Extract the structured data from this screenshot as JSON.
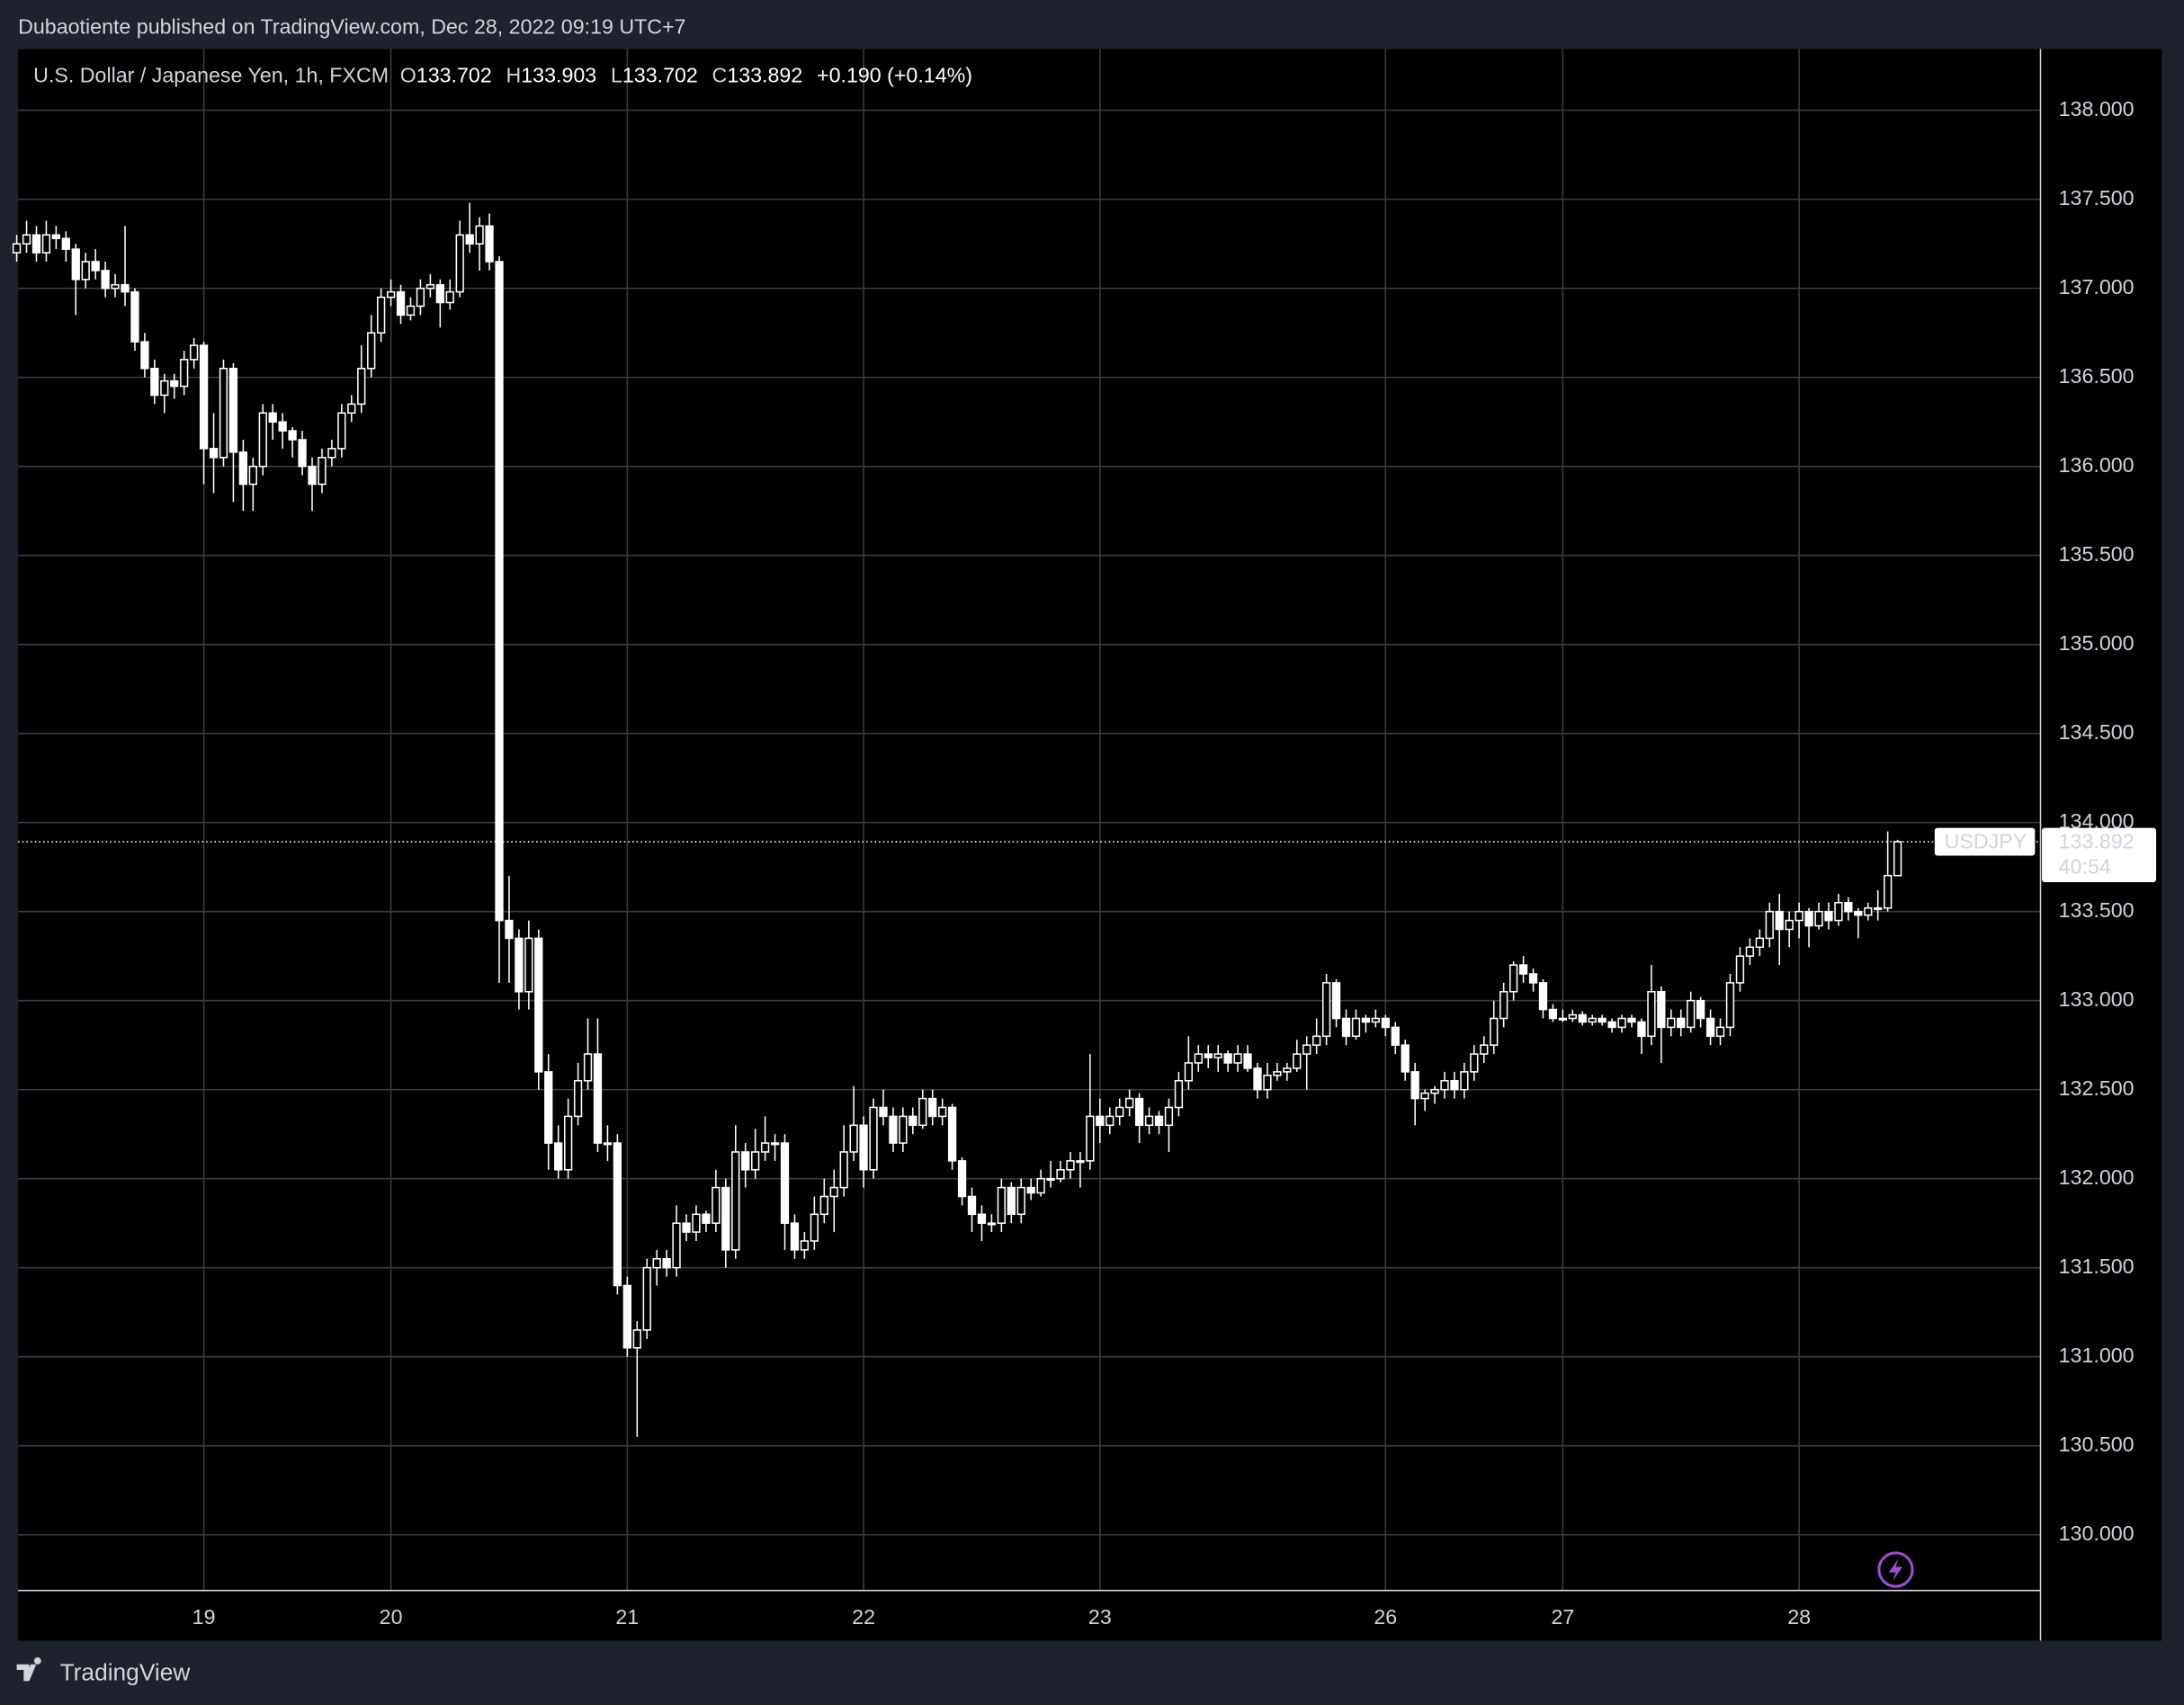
{
  "attribution": "Dubaotiente published on TradingView.com, Dec 28, 2022 09:19 UTC+7",
  "brand": "TradingView",
  "chart_data": {
    "type": "candlestick",
    "symbol": "U.S. Dollar / Japanese Yen, 1h, FXCM",
    "ohlc_labels": [
      "O",
      "H",
      "L",
      "C"
    ],
    "change": "+0.190 (+0.14%)",
    "ticker": "USDJPY",
    "countdown": "40:54",
    "color": "#ffffff",
    "up_fill": "#000000",
    "down_fill": "#ffffff",
    "grid": true,
    "ylim": [
      129.687,
      138.344
    ],
    "yticks": [
      {
        "value": 130,
        "label": "130.000"
      },
      {
        "value": 130.5,
        "label": "130.500"
      },
      {
        "value": 131,
        "label": "131.000"
      },
      {
        "value": 131.5,
        "label": "131.500"
      },
      {
        "value": 132,
        "label": "132.000"
      },
      {
        "value": 132.5,
        "label": "132.500"
      },
      {
        "value": 133,
        "label": "133.000"
      },
      {
        "value": 133.5,
        "label": "133.500"
      },
      {
        "value": 134,
        "label": "134.000"
      },
      {
        "value": 134.5,
        "label": "134.500"
      },
      {
        "value": 135,
        "label": "135.000"
      },
      {
        "value": 135.5,
        "label": "135.500"
      },
      {
        "value": 136,
        "label": "136.000"
      },
      {
        "value": 136.5,
        "label": "136.500"
      },
      {
        "value": 137,
        "label": "137.000"
      },
      {
        "value": 137.5,
        "label": "137.500"
      },
      {
        "value": 138,
        "label": "138.000"
      }
    ],
    "categories": [
      null,
      null,
      null,
      null,
      null,
      null,
      null,
      null,
      null,
      null,
      null,
      null,
      null,
      null,
      null,
      null,
      null,
      null,
      null,
      "19",
      null,
      null,
      null,
      null,
      null,
      null,
      null,
      null,
      null,
      null,
      null,
      null,
      null,
      null,
      null,
      null,
      null,
      null,
      "20",
      null,
      null,
      null,
      null,
      null,
      null,
      null,
      null,
      null,
      null,
      null,
      null,
      null,
      null,
      null,
      null,
      null,
      null,
      null,
      null,
      null,
      null,
      null,
      "21",
      null,
      null,
      null,
      null,
      null,
      null,
      null,
      null,
      null,
      null,
      null,
      null,
      null,
      null,
      null,
      null,
      null,
      null,
      null,
      null,
      null,
      null,
      null,
      "22",
      null,
      null,
      null,
      null,
      null,
      null,
      null,
      null,
      null,
      null,
      null,
      null,
      null,
      null,
      null,
      null,
      null,
      null,
      null,
      null,
      null,
      null,
      null,
      "23",
      null,
      null,
      null,
      null,
      null,
      null,
      null,
      null,
      null,
      null,
      null,
      null,
      null,
      null,
      null,
      null,
      null,
      null,
      null,
      null,
      null,
      null,
      null,
      null,
      null,
      null,
      null,
      null,
      "26",
      null,
      null,
      null,
      null,
      null,
      null,
      null,
      null,
      null,
      null,
      null,
      null,
      null,
      null,
      null,
      null,
      null,
      "27",
      null,
      null,
      null,
      null,
      null,
      null,
      null,
      null,
      null,
      null,
      null,
      null,
      null,
      null,
      null,
      null,
      null,
      null,
      null,
      null,
      null,
      null,
      null,
      "28",
      null,
      null,
      null,
      null,
      null,
      null,
      null,
      null,
      null,
      null
    ],
    "candles": [
      [
        137.2,
        137.3,
        137.15,
        137.25
      ],
      [
        137.25,
        137.38,
        137.2,
        137.3
      ],
      [
        137.3,
        137.35,
        137.15,
        137.2
      ],
      [
        137.2,
        137.38,
        137.15,
        137.3
      ],
      [
        137.3,
        137.35,
        137.22,
        137.28
      ],
      [
        137.28,
        137.32,
        137.15,
        137.22
      ],
      [
        137.22,
        137.25,
        136.85,
        137.05
      ],
      [
        137.05,
        137.2,
        137.0,
        137.15
      ],
      [
        137.15,
        137.22,
        137.05,
        137.1
      ],
      [
        137.1,
        137.15,
        136.95,
        137.0
      ],
      [
        137.0,
        137.08,
        136.95,
        137.02
      ],
      [
        137.02,
        137.35,
        136.9,
        136.98
      ],
      [
        136.98,
        137.0,
        136.65,
        136.7
      ],
      [
        136.7,
        136.75,
        136.5,
        136.55
      ],
      [
        136.55,
        136.6,
        136.35,
        136.4
      ],
      [
        136.4,
        136.52,
        136.3,
        136.48
      ],
      [
        136.48,
        136.52,
        136.38,
        136.45
      ],
      [
        136.45,
        136.65,
        136.4,
        136.6
      ],
      [
        136.6,
        136.72,
        136.55,
        136.68
      ],
      [
        136.68,
        136.7,
        135.9,
        136.1
      ],
      [
        136.1,
        136.3,
        135.85,
        136.05
      ],
      [
        136.05,
        136.6,
        136.0,
        136.55
      ],
      [
        136.55,
        136.58,
        135.8,
        136.08
      ],
      [
        136.08,
        136.15,
        135.75,
        135.9
      ],
      [
        135.9,
        136.05,
        135.75,
        136.0
      ],
      [
        136.0,
        136.35,
        135.95,
        136.3
      ],
      [
        136.3,
        136.35,
        136.15,
        136.25
      ],
      [
        136.25,
        136.3,
        136.1,
        136.2
      ],
      [
        136.2,
        136.22,
        136.05,
        136.15
      ],
      [
        136.15,
        136.2,
        135.95,
        136.0
      ],
      [
        136.0,
        136.05,
        135.75,
        135.9
      ],
      [
        135.9,
        136.1,
        135.85,
        136.05
      ],
      [
        136.05,
        136.15,
        136.0,
        136.1
      ],
      [
        136.1,
        136.35,
        136.05,
        136.3
      ],
      [
        136.3,
        136.4,
        136.25,
        136.35
      ],
      [
        136.35,
        136.68,
        136.3,
        136.55
      ],
      [
        136.55,
        136.85,
        136.5,
        136.75
      ],
      [
        136.75,
        137.0,
        136.7,
        136.95
      ],
      [
        136.95,
        137.05,
        136.9,
        136.98
      ],
      [
        136.98,
        137.02,
        136.8,
        136.85
      ],
      [
        136.85,
        136.95,
        136.82,
        136.9
      ],
      [
        136.9,
        137.05,
        136.85,
        137.0
      ],
      [
        137.0,
        137.08,
        136.95,
        137.02
      ],
      [
        137.02,
        137.05,
        136.78,
        136.92
      ],
      [
        136.92,
        137.05,
        136.88,
        136.98
      ],
      [
        136.98,
        137.38,
        136.95,
        137.3
      ],
      [
        137.3,
        137.48,
        137.2,
        137.25
      ],
      [
        137.25,
        137.4,
        137.1,
        137.35
      ],
      [
        137.35,
        137.42,
        137.1,
        137.15
      ],
      [
        137.15,
        137.18,
        133.1,
        133.45
      ],
      [
        133.45,
        133.7,
        133.1,
        133.35
      ],
      [
        133.35,
        133.4,
        132.95,
        133.05
      ],
      [
        133.05,
        133.45,
        132.95,
        133.35
      ],
      [
        133.35,
        133.4,
        132.5,
        132.6
      ],
      [
        132.6,
        132.7,
        132.05,
        132.2
      ],
      [
        132.2,
        132.3,
        132.0,
        132.05
      ],
      [
        132.05,
        132.45,
        132.0,
        132.35
      ],
      [
        132.35,
        132.65,
        132.3,
        132.55
      ],
      [
        132.55,
        132.9,
        132.5,
        132.7
      ],
      [
        132.7,
        132.9,
        132.15,
        132.2
      ],
      [
        132.2,
        132.3,
        132.1,
        132.2
      ],
      [
        132.2,
        132.25,
        131.35,
        131.4
      ],
      [
        131.4,
        131.45,
        131.0,
        131.05
      ],
      [
        131.05,
        131.2,
        130.55,
        131.15
      ],
      [
        131.15,
        131.55,
        131.1,
        131.5
      ],
      [
        131.5,
        131.6,
        131.4,
        131.55
      ],
      [
        131.55,
        131.6,
        131.45,
        131.5
      ],
      [
        131.5,
        131.85,
        131.45,
        131.75
      ],
      [
        131.75,
        131.8,
        131.65,
        131.7
      ],
      [
        131.7,
        131.85,
        131.65,
        131.8
      ],
      [
        131.8,
        131.82,
        131.7,
        131.75
      ],
      [
        131.75,
        132.05,
        131.7,
        131.95
      ],
      [
        131.95,
        132.0,
        131.5,
        131.6
      ],
      [
        131.6,
        132.3,
        131.55,
        132.15
      ],
      [
        132.15,
        132.2,
        131.95,
        132.05
      ],
      [
        132.05,
        132.28,
        132.0,
        132.15
      ],
      [
        132.15,
        132.35,
        132.1,
        132.2
      ],
      [
        132.2,
        132.25,
        132.1,
        132.2
      ],
      [
        132.2,
        132.25,
        131.6,
        131.75
      ],
      [
        131.75,
        131.8,
        131.55,
        131.6
      ],
      [
        131.6,
        131.7,
        131.55,
        131.65
      ],
      [
        131.65,
        131.9,
        131.6,
        131.8
      ],
      [
        131.8,
        132.0,
        131.75,
        131.9
      ],
      [
        131.9,
        132.05,
        131.7,
        131.95
      ],
      [
        131.95,
        132.3,
        131.9,
        132.15
      ],
      [
        132.15,
        132.52,
        132.1,
        132.3
      ],
      [
        132.3,
        132.35,
        131.95,
        132.05
      ],
      [
        132.05,
        132.45,
        132.0,
        132.4
      ],
      [
        132.4,
        132.5,
        132.3,
        132.35
      ],
      [
        132.35,
        132.4,
        132.15,
        132.2
      ],
      [
        132.2,
        132.4,
        132.15,
        132.35
      ],
      [
        132.35,
        132.4,
        132.25,
        132.3
      ],
      [
        132.3,
        132.5,
        132.28,
        132.45
      ],
      [
        132.45,
        132.5,
        132.3,
        132.35
      ],
      [
        132.35,
        132.45,
        132.3,
        132.4
      ],
      [
        132.4,
        132.42,
        132.05,
        132.1
      ],
      [
        132.1,
        132.12,
        131.85,
        131.9
      ],
      [
        131.9,
        131.95,
        131.7,
        131.8
      ],
      [
        131.8,
        131.85,
        131.65,
        131.75
      ],
      [
        131.75,
        131.8,
        131.7,
        131.75
      ],
      [
        131.75,
        132.0,
        131.7,
        131.95
      ],
      [
        131.95,
        131.98,
        131.75,
        131.8
      ],
      [
        131.8,
        132.0,
        131.75,
        131.95
      ],
      [
        131.95,
        132.0,
        131.88,
        131.92
      ],
      [
        131.92,
        132.05,
        131.9,
        132.0
      ],
      [
        132.0,
        132.1,
        131.95,
        132.0
      ],
      [
        132.0,
        132.1,
        131.98,
        132.05
      ],
      [
        132.05,
        132.15,
        132.0,
        132.1
      ],
      [
        132.1,
        132.15,
        131.95,
        132.1
      ],
      [
        132.1,
        132.7,
        132.05,
        132.35
      ],
      [
        132.35,
        132.45,
        132.2,
        132.3
      ],
      [
        132.3,
        132.4,
        132.25,
        132.35
      ],
      [
        132.35,
        132.45,
        132.3,
        132.4
      ],
      [
        132.4,
        132.5,
        132.35,
        132.45
      ],
      [
        132.45,
        132.48,
        132.2,
        132.3
      ],
      [
        132.3,
        132.4,
        132.25,
        132.35
      ],
      [
        132.35,
        132.38,
        132.25,
        132.3
      ],
      [
        132.3,
        132.45,
        132.15,
        132.4
      ],
      [
        132.4,
        132.6,
        132.35,
        132.55
      ],
      [
        132.55,
        132.8,
        132.5,
        132.65
      ],
      [
        132.65,
        132.75,
        132.6,
        132.7
      ],
      [
        132.7,
        132.75,
        132.62,
        132.68
      ],
      [
        132.68,
        132.75,
        132.6,
        132.7
      ],
      [
        132.7,
        132.72,
        132.6,
        132.65
      ],
      [
        132.65,
        132.75,
        132.6,
        132.7
      ],
      [
        132.7,
        132.75,
        132.6,
        132.62
      ],
      [
        132.62,
        132.65,
        132.45,
        132.5
      ],
      [
        132.5,
        132.65,
        132.45,
        132.58
      ],
      [
        132.58,
        132.65,
        132.55,
        132.6
      ],
      [
        132.6,
        132.65,
        132.55,
        132.62
      ],
      [
        132.62,
        132.78,
        132.6,
        132.7
      ],
      [
        132.7,
        132.8,
        132.5,
        132.75
      ],
      [
        132.75,
        132.9,
        132.7,
        132.8
      ],
      [
        132.8,
        133.15,
        132.75,
        133.1
      ],
      [
        133.1,
        133.12,
        132.85,
        132.9
      ],
      [
        132.9,
        132.95,
        132.75,
        132.8
      ],
      [
        132.8,
        132.95,
        132.78,
        132.9
      ],
      [
        132.9,
        132.92,
        132.82,
        132.88
      ],
      [
        132.88,
        132.95,
        132.85,
        132.9
      ],
      [
        132.9,
        132.92,
        132.8,
        132.85
      ],
      [
        132.85,
        132.88,
        132.7,
        132.75
      ],
      [
        132.75,
        132.78,
        132.55,
        132.6
      ],
      [
        132.6,
        132.65,
        132.3,
        132.45
      ],
      [
        132.45,
        132.5,
        132.38,
        132.48
      ],
      [
        132.48,
        132.52,
        132.42,
        132.5
      ],
      [
        132.5,
        132.6,
        132.45,
        132.55
      ],
      [
        132.55,
        132.6,
        132.45,
        132.5
      ],
      [
        132.5,
        132.65,
        132.45,
        132.6
      ],
      [
        132.6,
        132.75,
        132.55,
        132.7
      ],
      [
        132.7,
        132.8,
        132.65,
        132.75
      ],
      [
        132.75,
        133.0,
        132.7,
        132.9
      ],
      [
        132.9,
        133.1,
        132.85,
        133.05
      ],
      [
        133.05,
        133.22,
        133.0,
        133.2
      ],
      [
        133.2,
        133.25,
        133.1,
        133.15
      ],
      [
        133.15,
        133.18,
        133.05,
        133.1
      ],
      [
        133.1,
        133.12,
        132.9,
        132.95
      ],
      [
        132.95,
        132.98,
        132.88,
        132.9
      ],
      [
        132.9,
        132.95,
        132.88,
        132.9
      ],
      [
        132.9,
        132.95,
        132.88,
        132.92
      ],
      [
        132.92,
        132.94,
        132.86,
        132.88
      ],
      [
        132.88,
        132.92,
        132.86,
        132.9
      ],
      [
        132.9,
        132.92,
        132.86,
        132.88
      ],
      [
        132.88,
        132.9,
        132.82,
        132.85
      ],
      [
        132.85,
        132.92,
        132.82,
        132.9
      ],
      [
        132.9,
        132.92,
        132.85,
        132.88
      ],
      [
        132.88,
        132.9,
        132.7,
        132.8
      ],
      [
        132.8,
        133.2,
        132.75,
        133.05
      ],
      [
        133.05,
        133.08,
        132.65,
        132.85
      ],
      [
        132.85,
        132.95,
        132.8,
        132.9
      ],
      [
        132.9,
        132.95,
        132.8,
        132.85
      ],
      [
        132.85,
        133.05,
        132.82,
        133.0
      ],
      [
        133.0,
        133.02,
        132.85,
        132.9
      ],
      [
        132.9,
        132.95,
        132.75,
        132.8
      ],
      [
        132.8,
        132.9,
        132.75,
        132.85
      ],
      [
        132.85,
        133.15,
        132.8,
        133.1
      ],
      [
        133.1,
        133.3,
        133.05,
        133.25
      ],
      [
        133.25,
        133.35,
        133.2,
        133.3
      ],
      [
        133.3,
        133.4,
        133.25,
        133.35
      ],
      [
        133.35,
        133.55,
        133.3,
        133.5
      ],
      [
        133.5,
        133.6,
        133.2,
        133.4
      ],
      [
        133.4,
        133.5,
        133.3,
        133.45
      ],
      [
        133.45,
        133.55,
        133.35,
        133.5
      ],
      [
        133.5,
        133.52,
        133.3,
        133.42
      ],
      [
        133.42,
        133.55,
        133.4,
        133.5
      ],
      [
        133.5,
        133.55,
        133.4,
        133.45
      ],
      [
        133.45,
        133.6,
        133.42,
        133.55
      ],
      [
        133.55,
        133.58,
        133.45,
        133.5
      ],
      [
        133.5,
        133.52,
        133.35,
        133.48
      ],
      [
        133.48,
        133.55,
        133.45,
        133.52
      ],
      [
        133.52,
        133.62,
        133.45,
        133.52
      ],
      [
        133.52,
        133.95,
        133.5,
        133.702
      ],
      [
        133.702,
        133.903,
        133.702,
        133.892
      ]
    ]
  }
}
